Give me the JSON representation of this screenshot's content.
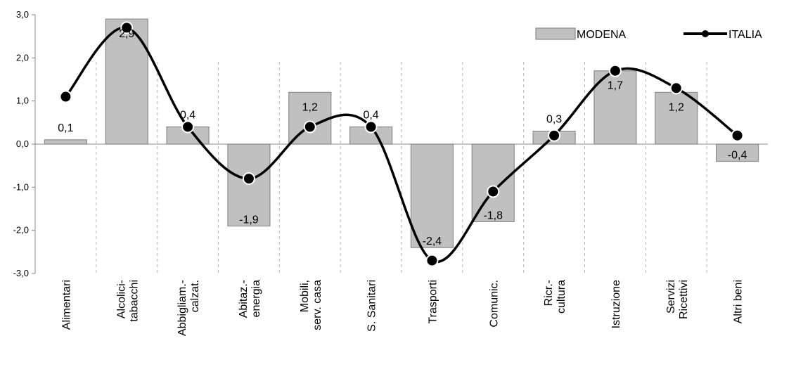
{
  "chart_data": {
    "type": "bar",
    "categories": [
      [
        "Alimentari"
      ],
      [
        "Alcolici-",
        "tabacchi"
      ],
      [
        "Abbigliam.-",
        "calzat."
      ],
      [
        "Abitaz.-",
        "energia"
      ],
      [
        "Mobili,",
        "serv. casa"
      ],
      [
        "S. Sanitari"
      ],
      [
        "Trasporti"
      ],
      [
        "Comunic."
      ],
      [
        "Ricr.-",
        "cultura"
      ],
      [
        "Istruzione"
      ],
      [
        "Servizi",
        "Ricettivi"
      ],
      [
        "Altri beni"
      ]
    ],
    "series": [
      {
        "name": "MODENA",
        "kind": "bar",
        "color": "#c0c0c0",
        "values": [
          0.1,
          2.9,
          0.4,
          -1.9,
          1.2,
          0.4,
          -2.4,
          -1.8,
          0.3,
          1.7,
          1.2,
          -0.4
        ],
        "labels": [
          "0,1",
          "2,9",
          "0,4",
          "-1,9",
          "1,2",
          "0,4",
          "-2,4",
          "-1,8",
          "0,3",
          "1,7",
          "1,2",
          "-0,4"
        ]
      },
      {
        "name": "ITALIA",
        "kind": "line",
        "color": "#000000",
        "values": [
          1.1,
          2.7,
          0.4,
          -0.8,
          0.4,
          0.4,
          -2.7,
          -1.1,
          0.2,
          1.7,
          1.3,
          0.2
        ]
      }
    ],
    "ylim": [
      -3.0,
      3.0
    ],
    "yticks": [
      "3,0",
      "2,0",
      "1,0",
      "0,0",
      "-1,0",
      "-2,0",
      "-3,0"
    ],
    "grid": "vertical dashed separators",
    "legend": "top-right"
  }
}
